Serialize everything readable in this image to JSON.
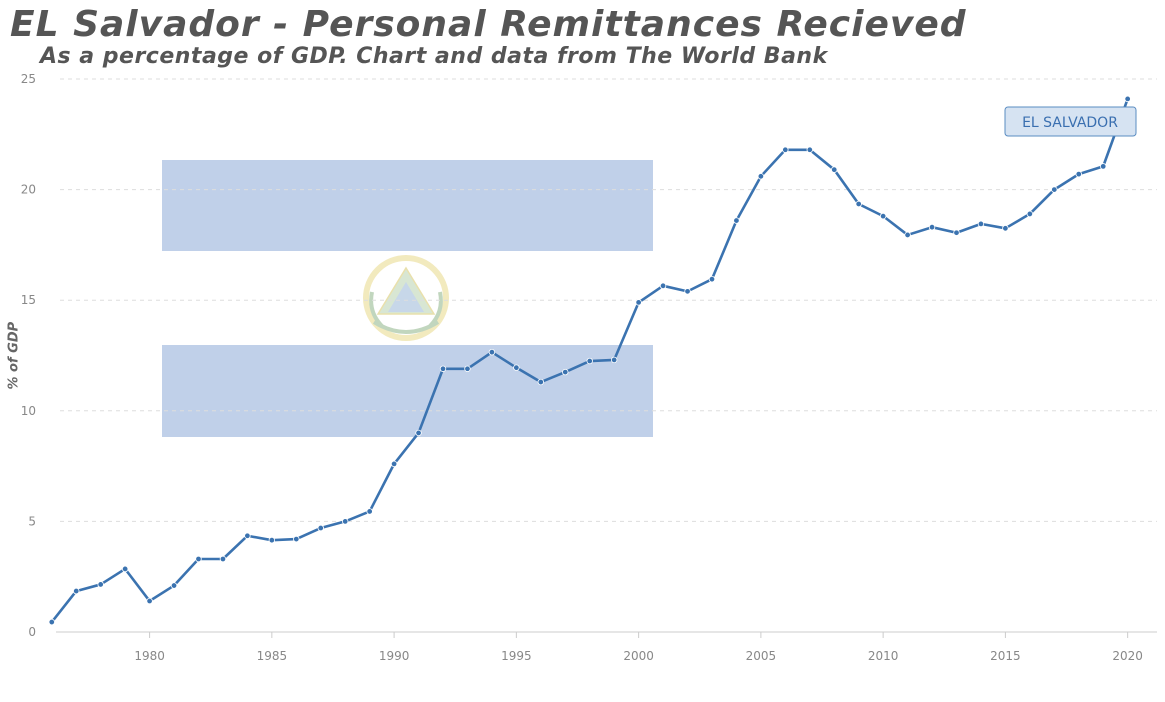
{
  "title": "EL Salvador - Personal Remittances Recieved",
  "subtitle": "As a percentage of GDP. Chart and data from The World Bank",
  "colors": {
    "line": "#3b73b0",
    "flag_blue": "#c0d0e9",
    "grid": "#dddddd",
    "title": "#555555"
  },
  "chart_data": {
    "type": "line",
    "title": "EL Salvador - Personal Remittances Recieved",
    "subtitle": "As a percentage of GDP. Chart and data from The World Bank",
    "xlabel": "",
    "ylabel": "% of GDP",
    "xlim": [
      1975.6,
      2021.2
    ],
    "ylim": [
      0,
      25
    ],
    "grid": true,
    "x_ticks": [
      1980,
      1985,
      1990,
      1995,
      2000,
      2005,
      2010,
      2015,
      2020
    ],
    "y_ticks": [
      0,
      5,
      10,
      15,
      20,
      25
    ],
    "series": [
      {
        "name": "EL SALVADOR",
        "x": [
          1976,
          1977,
          1978,
          1979,
          1980,
          1981,
          1982,
          1983,
          1984,
          1985,
          1986,
          1987,
          1988,
          1989,
          1990,
          1991,
          1992,
          1993,
          1994,
          1995,
          1996,
          1997,
          1998,
          1999,
          2000,
          2001,
          2002,
          2003,
          2004,
          2005,
          2006,
          2007,
          2008,
          2009,
          2010,
          2011,
          2012,
          2013,
          2014,
          2015,
          2016,
          2017,
          2018,
          2019,
          2020
        ],
        "values": [
          0.45,
          1.85,
          2.15,
          2.85,
          1.4,
          2.1,
          3.3,
          3.3,
          4.35,
          4.15,
          4.2,
          4.7,
          5.0,
          5.45,
          7.6,
          9.0,
          11.9,
          11.9,
          12.65,
          11.95,
          11.3,
          11.75,
          12.25,
          12.3,
          14.9,
          15.65,
          15.4,
          15.95,
          18.6,
          20.6,
          21.8,
          21.8,
          20.9,
          19.35,
          18.8,
          17.95,
          18.3,
          18.05,
          18.45,
          18.25,
          18.9,
          20.0,
          20.7,
          21.05,
          24.1
        ]
      }
    ]
  }
}
